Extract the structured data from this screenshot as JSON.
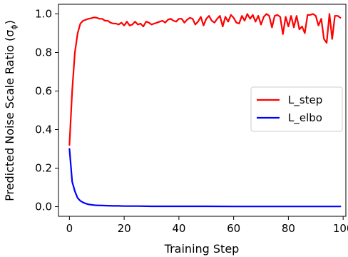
{
  "chart_data": {
    "type": "line",
    "xlabel": "Training Step",
    "ylabel": "Predicted Noise Scale Ratio (σ",
    "ylabel_sub": "ϕ",
    "ylabel_close": ")",
    "xlim": [
      -4,
      101
    ],
    "ylim": [
      -0.05,
      1.05
    ],
    "xticks": [
      0,
      20,
      40,
      60,
      80,
      100
    ],
    "xtick_labels": [
      "0",
      "20",
      "40",
      "60",
      "80",
      "100"
    ],
    "yticks": [
      0.0,
      0.2,
      0.4,
      0.6,
      0.8,
      1.0
    ],
    "ytick_labels": [
      "0.0",
      "0.2",
      "0.4",
      "0.6",
      "0.8",
      "1.0"
    ],
    "grid": false,
    "legend_position": "center-right",
    "series": [
      {
        "name": "L_step",
        "color": "#ff0000",
        "x": [
          0,
          1,
          2,
          3,
          4,
          5,
          6,
          7,
          8,
          9,
          10,
          11,
          12,
          13,
          14,
          15,
          16,
          17,
          18,
          19,
          20,
          21,
          22,
          23,
          24,
          25,
          26,
          27,
          28,
          29,
          30,
          31,
          32,
          33,
          34,
          35,
          36,
          37,
          38,
          39,
          40,
          41,
          42,
          43,
          44,
          45,
          46,
          47,
          48,
          49,
          50,
          51,
          52,
          53,
          54,
          55,
          56,
          57,
          58,
          59,
          60,
          61,
          62,
          63,
          64,
          65,
          66,
          67,
          68,
          69,
          70,
          71,
          72,
          73,
          74,
          75,
          76,
          77,
          78,
          79,
          80,
          81,
          82,
          83,
          84,
          85,
          86,
          87,
          88,
          89,
          90,
          91,
          92,
          93,
          94,
          95,
          96,
          97,
          98,
          99
        ],
        "values": [
          0.32,
          0.6,
          0.8,
          0.9,
          0.95,
          0.965,
          0.97,
          0.975,
          0.978,
          0.982,
          0.98,
          0.975,
          0.975,
          0.965,
          0.965,
          0.955,
          0.95,
          0.95,
          0.945,
          0.955,
          0.94,
          0.96,
          0.94,
          0.945,
          0.96,
          0.945,
          0.95,
          0.935,
          0.96,
          0.955,
          0.945,
          0.95,
          0.955,
          0.96,
          0.965,
          0.955,
          0.97,
          0.975,
          0.965,
          0.96,
          0.975,
          0.975,
          0.955,
          0.97,
          0.98,
          0.975,
          0.945,
          0.96,
          0.985,
          0.94,
          0.975,
          0.99,
          0.965,
          0.955,
          0.975,
          0.99,
          0.935,
          0.985,
          0.96,
          0.995,
          0.98,
          0.955,
          0.95,
          0.99,
          0.965,
          1.0,
          0.975,
          0.995,
          0.96,
          0.99,
          0.945,
          0.985,
          1.0,
          0.99,
          0.93,
          0.99,
          0.995,
          0.985,
          0.895,
          0.985,
          0.935,
          0.99,
          0.93,
          0.99,
          0.92,
          0.935,
          0.9,
          0.995,
          0.995,
          1.0,
          0.99,
          0.94,
          0.975,
          0.87,
          0.85,
          1.0,
          0.87,
          0.99,
          0.99,
          0.98
        ]
      },
      {
        "name": "L_elbo",
        "color": "#0000ff",
        "x": [
          0,
          1,
          2,
          3,
          4,
          5,
          6,
          7,
          8,
          9,
          10,
          12,
          14,
          16,
          18,
          20,
          25,
          30,
          40,
          50,
          60,
          70,
          80,
          90,
          99
        ],
        "values": [
          0.3,
          0.13,
          0.08,
          0.045,
          0.03,
          0.022,
          0.016,
          0.012,
          0.01,
          0.008,
          0.007,
          0.006,
          0.005,
          0.004,
          0.004,
          0.003,
          0.003,
          0.002,
          0.002,
          0.002,
          0.001,
          0.001,
          0.001,
          0.001,
          0.001
        ]
      }
    ]
  }
}
